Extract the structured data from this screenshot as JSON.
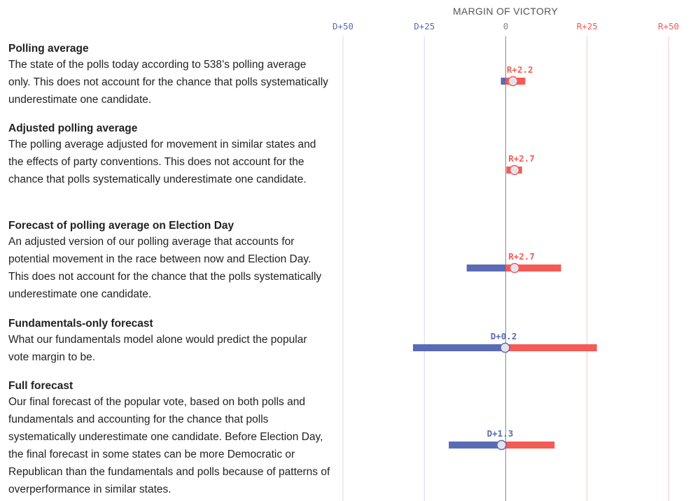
{
  "chart_data": {
    "type": "range",
    "title": "MARGIN OF VICTORY",
    "xlim": [
      -50,
      50
    ],
    "ticks": [
      {
        "value": -50,
        "label": "D+50"
      },
      {
        "value": -25,
        "label": "D+25"
      },
      {
        "value": 0,
        "label": "0"
      },
      {
        "value": 25,
        "label": "R+25"
      },
      {
        "value": 50,
        "label": "R+50"
      }
    ],
    "colors": {
      "democrat": "#5a6bb5",
      "republican": "#f45b55",
      "zero": "#888888",
      "grid_dem": "#d8dbeb",
      "grid_rep": "#f6c7c4",
      "dot_fill": "#e4e4ee"
    },
    "rows": [
      {
        "title": "Polling average",
        "description": "The state of the polls today according to 538’s polling average only. This does not account for the chance that polls systematically underestimate one candidate.",
        "low": -1.5,
        "high": 6,
        "point": 2.2,
        "label": "R+2.2",
        "party": "R"
      },
      {
        "title": "Adjusted polling average",
        "description": "The polling average adjusted for movement in similar states and the effects of party conventions. This does not account for the chance that polls systematically underestimate one candidate.",
        "low": 0.2,
        "high": 5,
        "point": 2.7,
        "label": "R+2.7",
        "party": "R"
      },
      {
        "title": "Forecast of polling average on Election Day",
        "description": "An adjusted version of our polling average that accounts for potential movement in the race between now and Election Day. This does not account for the chance that the polls systematically underestimate one candidate.",
        "low": -12,
        "high": 17,
        "point": 2.7,
        "label": "R+2.7",
        "party": "R"
      },
      {
        "title": "Fundamentals-only forecast",
        "description": "What our fundamentals model alone would predict the popular vote margin to be.",
        "low": -28.5,
        "high": 28,
        "point": -0.2,
        "label": "D+0.2",
        "party": "D"
      },
      {
        "title": "Full forecast",
        "description": "Our final forecast of the popular vote, based on both polls and fundamentals and accounting for the chance that polls systematically underestimate one candidate. Before Election Day, the final forecast in some states can be more Democratic or Republican than the fundamentals and polls because of patterns of overperformance in similar states.",
        "low": -17.5,
        "high": 15,
        "point": -1.3,
        "label": "D+1.3",
        "party": "D"
      }
    ]
  }
}
